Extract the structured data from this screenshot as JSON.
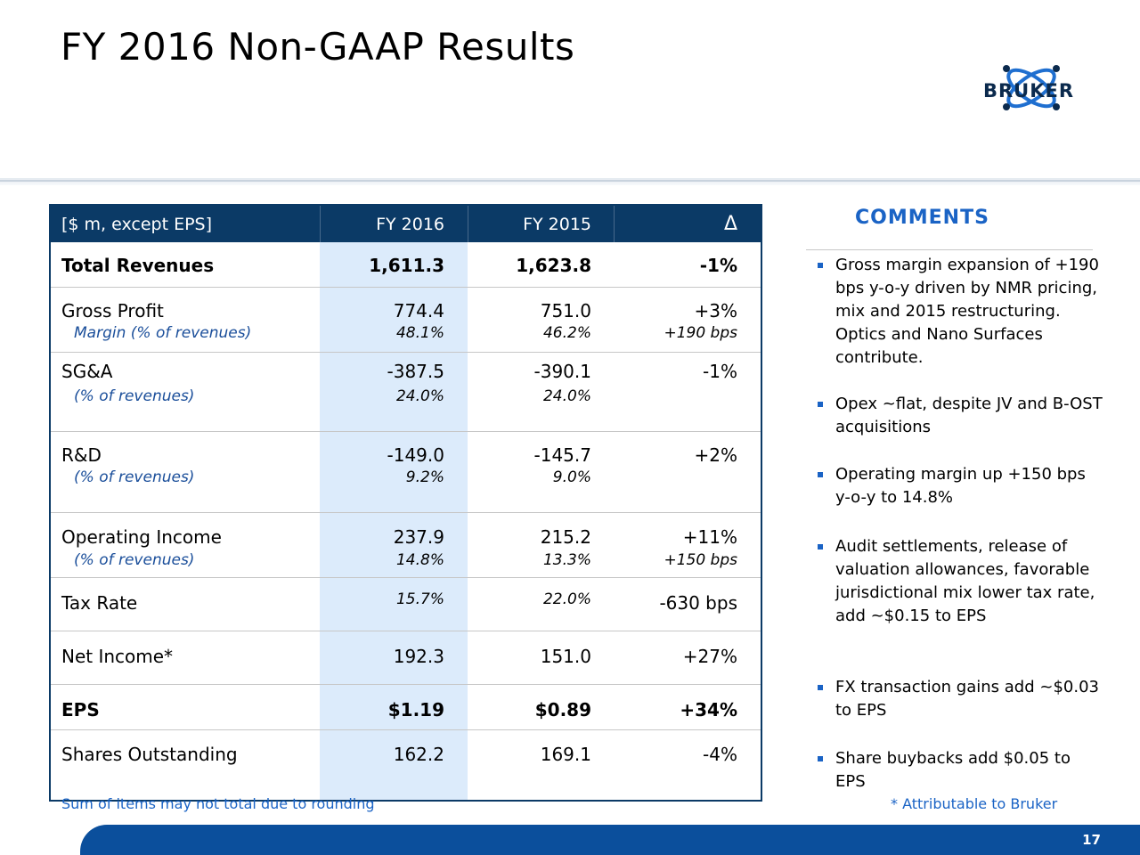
{
  "slide": {
    "title": "FY 2016 Non-GAAP Results",
    "logo_text": "BRUKER",
    "page_number": "17"
  },
  "table": {
    "headers": {
      "label": "[$ m, except EPS]",
      "fy2016": "FY 2016",
      "fy2015": "FY 2015",
      "delta": "Δ"
    },
    "rows": [
      {
        "label": "Total Revenues",
        "fy2016": "1,611.3",
        "fy2015": "1,623.8",
        "delta": "-1%",
        "bold": true
      },
      {
        "label": "Gross Profit",
        "fy2016": "774.4",
        "fy2015": "751.0",
        "delta": "+3%",
        "sub_label": "Margin (% of revenues)",
        "sub_fy2016": "48.1%",
        "sub_fy2015": "46.2%",
        "sub_delta": "+190 bps"
      },
      {
        "label": "SG&A",
        "fy2016": "-387.5",
        "fy2015": "-390.1",
        "delta": "-1%",
        "sub_label": "(% of revenues)",
        "sub_fy2016": "24.0%",
        "sub_fy2015": "24.0%"
      },
      {
        "label": "R&D",
        "fy2016": "-149.0",
        "fy2015": "-145.7",
        "delta": "+2%",
        "sub_label": "(% of revenues)",
        "sub_fy2016": "9.2%",
        "sub_fy2015": "9.0%"
      },
      {
        "label": "Operating Income",
        "fy2016": "237.9",
        "fy2015": "215.2",
        "delta": "+11%",
        "sub_label": "(% of revenues)",
        "sub_fy2016": "14.8%",
        "sub_fy2015": "13.3%",
        "sub_delta": "+150 bps"
      },
      {
        "label": "Tax Rate",
        "fy2016": "15.7%",
        "fy2015": "22.0%",
        "delta": "-630 bps"
      },
      {
        "label": "Net Income*",
        "fy2016": "192.3",
        "fy2015": "151.0",
        "delta": "+27%"
      },
      {
        "label": "EPS",
        "fy2016": "$1.19",
        "fy2015": "$0.89",
        "delta": "+34%",
        "bold": true
      },
      {
        "label": "Shares Outstanding",
        "fy2016": "162.2",
        "fy2015": "169.1",
        "delta": "-4%"
      }
    ]
  },
  "comments": {
    "title": "COMMENTS",
    "bullets": [
      "Gross margin expansion of +190 bps y-o-y driven by NMR pricing, mix and 2015 restructuring. Optics and Nano Surfaces contribute.",
      "Opex ~flat, despite JV and B-OST acquisitions",
      "Operating margin up +150 bps y-o-y to 14.8%",
      "Audit settlements, release of valuation allowances, favorable jurisdictional mix lower tax rate, add ~$0.15 to EPS",
      "FX transaction gains add ~$0.03 to EPS",
      "Share buybacks add $0.05 to EPS"
    ]
  },
  "footnotes": {
    "left": "Sum of items may not total due to rounding",
    "right": "* Attributable to Bruker"
  },
  "colors": {
    "header_navy": "#0b3a66",
    "accent_blue": "#1a63c5",
    "highlight_column": "#dcebfb",
    "footer_bar": "#0b4f9c"
  }
}
